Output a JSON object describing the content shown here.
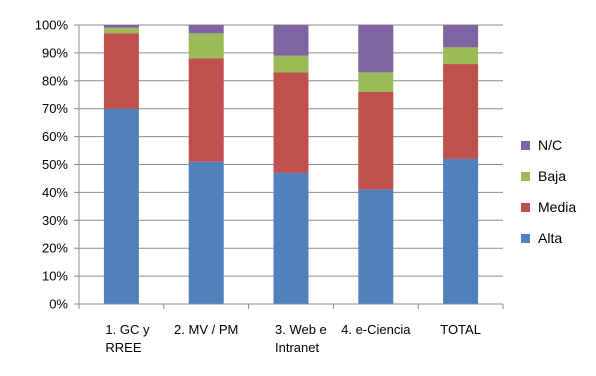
{
  "chart_data": {
    "type": "bar",
    "stacked": true,
    "categories": [
      [
        "1. GC y",
        "RREE"
      ],
      [
        "2. MV / PM"
      ],
      [
        "3. Web e",
        "Intranet"
      ],
      [
        "4. e-Ciencia"
      ],
      [
        "TOTAL"
      ]
    ],
    "series": [
      {
        "name": "Alta",
        "color": "#4f81bd",
        "values": [
          70,
          51,
          47,
          41,
          52
        ]
      },
      {
        "name": "Media",
        "color": "#c0504d",
        "values": [
          27,
          37,
          36,
          35,
          34
        ]
      },
      {
        "name": "Baja",
        "color": "#9bbb59",
        "values": [
          2,
          9,
          6,
          7,
          6
        ]
      },
      {
        "name": "N/C",
        "color": "#8064a2",
        "values": [
          1,
          3,
          11,
          17,
          8
        ]
      }
    ],
    "yticks": [
      "0%",
      "10%",
      "20%",
      "30%",
      "40%",
      "50%",
      "60%",
      "70%",
      "80%",
      "90%",
      "100%"
    ],
    "ylim": [
      0,
      100
    ],
    "legend_order": [
      "N/C",
      "Baja",
      "Media",
      "Alta"
    ],
    "legend_position": "right",
    "grid": true
  }
}
